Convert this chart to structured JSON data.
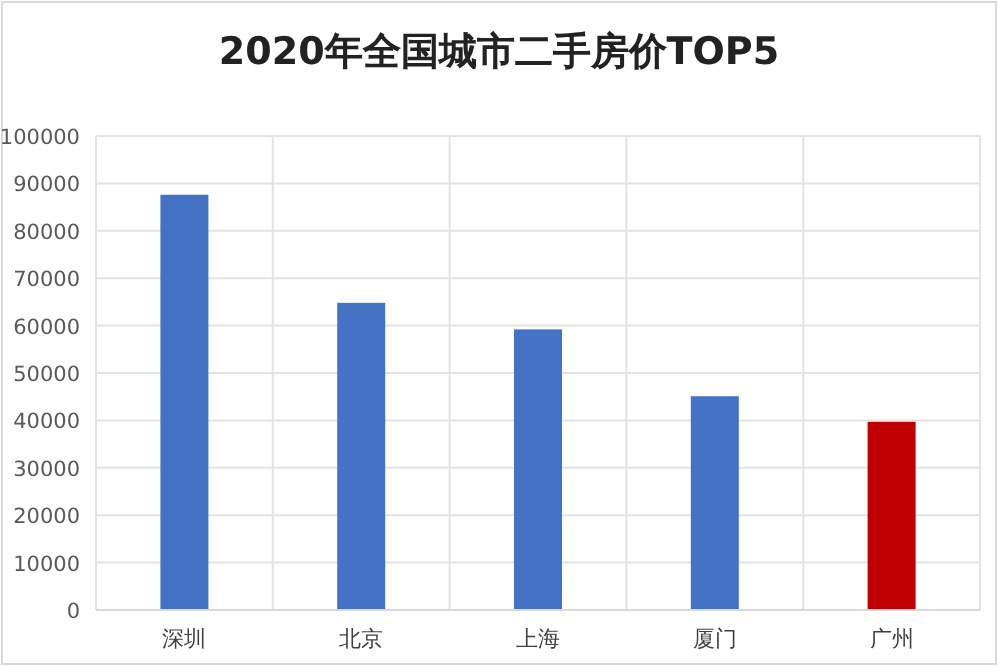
{
  "chart_data": {
    "type": "bar",
    "title": "2020年全国城市二手房价TOP5",
    "categories": [
      "深圳",
      "北京",
      "上海",
      "厦门",
      "广州"
    ],
    "values": [
      87600,
      64800,
      59200,
      45100,
      39700
    ],
    "colors": [
      "#4472c4",
      "#4472c4",
      "#4472c4",
      "#4472c4",
      "#c00000"
    ],
    "ylim": [
      0,
      100000
    ],
    "yticks": [
      0,
      10000,
      20000,
      30000,
      40000,
      50000,
      60000,
      70000,
      80000,
      90000,
      100000
    ],
    "grid": true
  }
}
